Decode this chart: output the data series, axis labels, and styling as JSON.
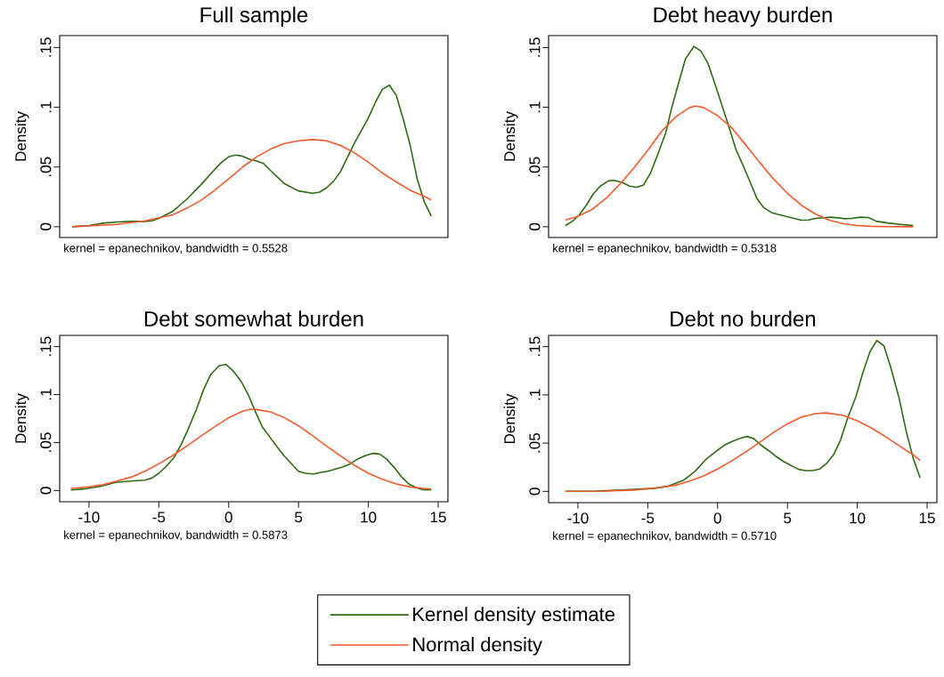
{
  "chart_data": [
    {
      "type": "line",
      "title": "Full sample",
      "ylabel": "Density",
      "xlim": [
        -12.1,
        15.7
      ],
      "ylim": [
        -0.009,
        0.16
      ],
      "yticks": [
        0,
        {
          "value": 0.05,
          "label": ".05"
        },
        {
          "value": 0.1,
          "label": ".1"
        },
        {
          "value": 0.15,
          "label": ".15"
        }
      ],
      "tick_labels": "y",
      "annotations": [
        "kernel = epanechnikov, bandwidth = 0.5528"
      ],
      "series": [
        {
          "color": "#2e6b13",
          "x": [
            -11.2,
            -10,
            -9,
            -8,
            -7,
            -6,
            -5.5,
            -5,
            -4,
            -3,
            -2,
            -1,
            -0.5,
            0,
            0.5,
            1,
            1.5,
            2,
            2.5,
            3,
            4,
            5,
            6,
            6.5,
            7,
            7.5,
            8,
            9,
            10,
            10.5,
            11,
            11.5,
            12,
            12.5,
            13,
            13.5,
            14,
            14.5
          ],
          "values": [
            0,
            0.001,
            0.003,
            0.004,
            0.0045,
            0.0045,
            0.005,
            0.007,
            0.013,
            0.023,
            0.035,
            0.048,
            0.054,
            0.0585,
            0.06,
            0.059,
            0.0565,
            0.055,
            0.053,
            0.047,
            0.036,
            0.03,
            0.028,
            0.029,
            0.0325,
            0.038,
            0.046,
            0.07,
            0.091,
            0.104,
            0.115,
            0.1185,
            0.11,
            0.09,
            0.068,
            0.04,
            0.021,
            0.009
          ]
        },
        {
          "color": "#f25a2b",
          "x": [
            -11.2,
            -8,
            -6,
            -5,
            -4,
            -3,
            -2,
            -1,
            0,
            1,
            2,
            3,
            4,
            5,
            6,
            7,
            8,
            9,
            10,
            11,
            12,
            13,
            14,
            14.5
          ],
          "values": [
            0,
            0.002,
            0.005,
            0.0075,
            0.01,
            0.0155,
            0.022,
            0.0305,
            0.04,
            0.05,
            0.0585,
            0.065,
            0.0697,
            0.072,
            0.073,
            0.072,
            0.068,
            0.062,
            0.054,
            0.045,
            0.0375,
            0.0305,
            0.0255,
            0.0225
          ]
        }
      ]
    },
    {
      "type": "line",
      "title": "Debt heavy burden",
      "ylabel": "Density",
      "xlim": [
        -12.1,
        15.7
      ],
      "ylim": [
        -0.009,
        0.16
      ],
      "yticks": [
        0,
        {
          "value": 0.05,
          "label": ".05"
        },
        {
          "value": 0.1,
          "label": ".1"
        },
        {
          "value": 0.15,
          "label": ".15"
        }
      ],
      "tick_labels": "y",
      "annotations": [
        "kernel = epanechnikov, bandwidth = 0.5318"
      ],
      "series": [
        {
          "color": "#2e6b13",
          "x": [
            -10.9,
            -10.4,
            -9.9,
            -9.4,
            -8.9,
            -8.4,
            -7.8,
            -7.4,
            -6.8,
            -6.3,
            -5.8,
            -5.3,
            -4.8,
            -4.3,
            -3.7,
            -3.3,
            -2.8,
            -2.3,
            -1.7,
            -1.2,
            -0.7,
            -0.2,
            0.3,
            0.8,
            1.3,
            1.8,
            2.4,
            2.8,
            3.3,
            3.9,
            4.9,
            6.0,
            6.5,
            7.0,
            8.1,
            8.6,
            9.1,
            9.6,
            10.2,
            10.8,
            11.4,
            12.3,
            13.1,
            14.0
          ],
          "values": [
            0.001,
            0.0045,
            0.01,
            0.018,
            0.0275,
            0.034,
            0.0385,
            0.0388,
            0.037,
            0.034,
            0.033,
            0.035,
            0.045,
            0.06,
            0.079,
            0.099,
            0.12,
            0.1405,
            0.151,
            0.147,
            0.137,
            0.12,
            0.102,
            0.084,
            0.065,
            0.052,
            0.0355,
            0.024,
            0.016,
            0.0117,
            0.0087,
            0.0055,
            0.0057,
            0.007,
            0.008,
            0.0075,
            0.0067,
            0.007,
            0.008,
            0.0077,
            0.0045,
            0.003,
            0.002,
            0.001
          ]
        },
        {
          "color": "#f25a2b",
          "x": [
            -10.9,
            -10,
            -9,
            -8,
            -7,
            -6,
            -5,
            -4,
            -3,
            -2,
            -1.6,
            -1,
            0,
            1,
            2,
            3,
            4,
            5,
            6,
            7,
            8,
            9,
            10,
            11,
            12,
            14
          ],
          "values": [
            0.0057,
            0.0087,
            0.0144,
            0.0236,
            0.0356,
            0.049,
            0.064,
            0.08,
            0.092,
            0.0998,
            0.101,
            0.0998,
            0.093,
            0.083,
            0.0687,
            0.054,
            0.04,
            0.028,
            0.018,
            0.0107,
            0.0055,
            0.0025,
            0.001,
            0.0004,
            0.0001,
            0
          ]
        }
      ]
    },
    {
      "type": "line",
      "title": "Debt somewhat burden",
      "ylabel": "Density",
      "xlim": [
        -12.1,
        15.7
      ],
      "ylim": [
        -0.0117,
        0.1617
      ],
      "xticks": [
        -10,
        -5,
        0,
        5,
        10,
        15
      ],
      "yticks": [
        0,
        {
          "value": 0.05,
          "label": ".05"
        },
        {
          "value": 0.1,
          "label": ".1"
        },
        {
          "value": 0.15,
          "label": ".15"
        }
      ],
      "annotations": [
        "kernel = epanechnikov, bandwidth = 0.5873"
      ],
      "series": [
        {
          "color": "#2e6b13",
          "x": [
            -11.3,
            -10.2,
            -9.1,
            -8.1,
            -7.0,
            -6.0,
            -5.5,
            -5.0,
            -4.5,
            -3.9,
            -3.4,
            -2.9,
            -2.3,
            -1.8,
            -1.3,
            -0.7,
            -0.2,
            0.3,
            0.9,
            1.4,
            1.9,
            2.4,
            3.0,
            3.5,
            4.0,
            4.6,
            5.0,
            5.5,
            6.1,
            6.6,
            7.1,
            7.7,
            8.2,
            8.7,
            9.2,
            9.8,
            10.3,
            10.8,
            11.3,
            11.9,
            12.4,
            12.9,
            13.4,
            13.9,
            14.5
          ],
          "values": [
            0.0006,
            0.0019,
            0.0046,
            0.0084,
            0.0099,
            0.0108,
            0.013,
            0.018,
            0.0247,
            0.0346,
            0.048,
            0.064,
            0.085,
            0.105,
            0.1206,
            0.13,
            0.1315,
            0.125,
            0.1135,
            0.1,
            0.0826,
            0.0665,
            0.0547,
            0.0448,
            0.0356,
            0.0263,
            0.02,
            0.018,
            0.0173,
            0.0189,
            0.02,
            0.0226,
            0.0247,
            0.0278,
            0.0325,
            0.0365,
            0.0387,
            0.038,
            0.033,
            0.0232,
            0.0139,
            0.0068,
            0.0031,
            0.0009,
            0.0006
          ]
        },
        {
          "color": "#f25a2b",
          "x": [
            -11.3,
            -10,
            -9,
            -8,
            -7,
            -6,
            -5,
            -4,
            -3,
            -2,
            -1,
            0,
            1,
            1.55,
            2,
            3,
            4,
            5,
            6,
            7,
            8,
            9,
            10,
            11,
            12,
            13,
            14,
            14.5
          ],
          "values": [
            0.0022,
            0.0037,
            0.0062,
            0.0099,
            0.0139,
            0.02,
            0.0278,
            0.0365,
            0.0464,
            0.0566,
            0.0665,
            0.0758,
            0.0826,
            0.0847,
            0.0844,
            0.082,
            0.0758,
            0.0674,
            0.0572,
            0.0464,
            0.0362,
            0.0263,
            0.018,
            0.0118,
            0.0068,
            0.0037,
            0.0022,
            0.0015
          ]
        }
      ]
    },
    {
      "type": "line",
      "title": "Debt no burden",
      "ylabel": "Density",
      "xlim": [
        -12.1,
        15.7
      ],
      "ylim": [
        -0.0117,
        0.1617
      ],
      "xticks": [
        -10,
        -5,
        0,
        5,
        10,
        15
      ],
      "yticks": [
        0,
        {
          "value": 0.05,
          "label": ".05"
        },
        {
          "value": 0.1,
          "label": ".1"
        },
        {
          "value": 0.15,
          "label": ".15"
        }
      ],
      "annotations": [
        "kernel = epanechnikov, bandwidth = 0.5710"
      ],
      "legend": "bottom",
      "series": [
        {
          "name": "Kernel density estimate",
          "color": "#2e6b13",
          "x": [
            -10.9,
            -8.7,
            -6.6,
            -4.5,
            -3.5,
            -2.4,
            -1.6,
            -0.8,
            0,
            0.5,
            1.0,
            1.6,
            2.1,
            2.6,
            3.1,
            3.7,
            4.2,
            4.7,
            5.2,
            5.8,
            6.3,
            6.8,
            7.3,
            7.8,
            8.3,
            8.8,
            9.3,
            9.9,
            10.4,
            10.9,
            11.4,
            11.9,
            12.4,
            13.0,
            13.5,
            14.0,
            14.5
          ],
          "values": [
            0,
            0.0003,
            0.0016,
            0.0032,
            0.0055,
            0.0119,
            0.0209,
            0.0337,
            0.0427,
            0.048,
            0.0514,
            0.055,
            0.0569,
            0.0546,
            0.048,
            0.0418,
            0.036,
            0.0312,
            0.0273,
            0.0228,
            0.0215,
            0.0215,
            0.0231,
            0.0289,
            0.0379,
            0.053,
            0.0755,
            0.098,
            0.123,
            0.1445,
            0.1564,
            0.151,
            0.1285,
            0.0964,
            0.0626,
            0.0344,
            0.0138
          ]
        },
        {
          "name": "Normal density",
          "color": "#f25a2b",
          "x": [
            -10.9,
            -8,
            -6,
            -4,
            -3,
            -2,
            -1,
            0,
            1,
            2,
            3,
            4,
            5,
            6,
            7,
            7.75,
            8,
            9,
            10,
            11,
            12,
            13,
            14,
            14.5
          ],
          "values": [
            0,
            0.0003,
            0.0013,
            0.0042,
            0.0064,
            0.0106,
            0.016,
            0.0231,
            0.0315,
            0.0408,
            0.0507,
            0.061,
            0.07,
            0.0771,
            0.0806,
            0.0813,
            0.0809,
            0.0787,
            0.0732,
            0.0658,
            0.0569,
            0.0472,
            0.0379,
            0.0321
          ]
        }
      ]
    }
  ]
}
